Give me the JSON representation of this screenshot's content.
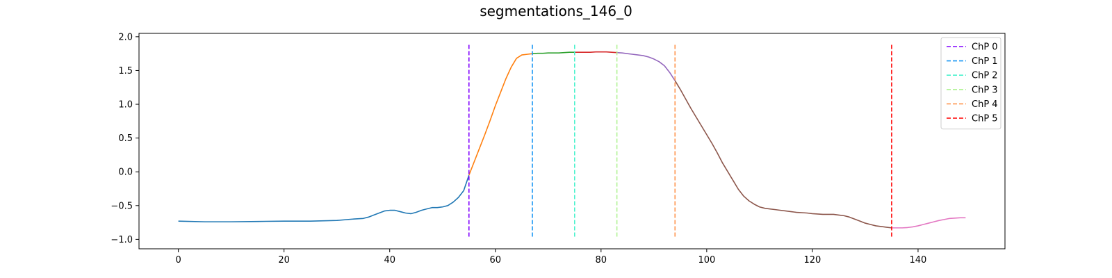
{
  "chart_data": {
    "type": "line",
    "title": "segmentations_146_0",
    "xlabel": "",
    "ylabel": "",
    "xlim": [
      -7.45,
      156.45
    ],
    "ylim": [
      -1.14,
      2.05
    ],
    "xticks": [
      0,
      20,
      40,
      60,
      80,
      100,
      120,
      140
    ],
    "yticks": [
      -1.0,
      -0.5,
      0.0,
      0.5,
      1.0,
      1.5,
      2.0
    ],
    "ytick_labels": [
      "−1.0",
      "−0.5",
      "0.0",
      "0.5",
      "1.0",
      "1.5",
      "2.0"
    ],
    "grid": false,
    "legend_position": "top-right",
    "x": [
      0,
      5,
      10,
      15,
      20,
      25,
      30,
      33,
      35,
      36,
      37,
      38,
      39,
      40,
      41,
      42,
      43,
      44,
      45,
      46,
      47,
      48,
      49,
      50,
      51,
      52,
      53,
      54,
      55,
      56,
      57,
      58,
      59,
      60,
      61,
      62,
      63,
      64,
      65,
      66,
      67,
      68,
      69,
      70,
      71,
      72,
      73,
      74,
      75,
      76,
      77,
      78,
      79,
      80,
      81,
      82,
      83,
      84,
      85,
      86,
      87,
      88,
      89,
      90,
      91,
      92,
      93,
      94,
      95,
      96,
      97,
      98,
      99,
      100,
      101,
      102,
      103,
      104,
      105,
      106,
      107,
      108,
      109,
      110,
      111,
      112,
      113,
      114,
      115,
      116,
      117,
      118,
      119,
      120,
      121,
      122,
      123,
      124,
      125,
      126,
      127,
      128,
      129,
      130,
      131,
      132,
      133,
      134,
      135,
      136,
      137,
      138,
      139,
      140,
      141,
      142,
      143,
      144,
      145,
      146,
      147,
      148,
      149
    ],
    "y": [
      -0.73,
      -0.74,
      -0.74,
      -0.735,
      -0.73,
      -0.73,
      -0.72,
      -0.7,
      -0.69,
      -0.67,
      -0.64,
      -0.61,
      -0.58,
      -0.57,
      -0.57,
      -0.59,
      -0.61,
      -0.62,
      -0.6,
      -0.57,
      -0.55,
      -0.53,
      -0.53,
      -0.52,
      -0.5,
      -0.45,
      -0.38,
      -0.28,
      -0.05,
      0.15,
      0.35,
      0.55,
      0.76,
      0.98,
      1.18,
      1.38,
      1.55,
      1.68,
      1.73,
      1.74,
      1.75,
      1.755,
      1.755,
      1.76,
      1.76,
      1.76,
      1.765,
      1.77,
      1.77,
      1.77,
      1.77,
      1.77,
      1.775,
      1.775,
      1.775,
      1.77,
      1.765,
      1.76,
      1.75,
      1.74,
      1.73,
      1.72,
      1.7,
      1.67,
      1.63,
      1.57,
      1.47,
      1.35,
      1.22,
      1.08,
      0.94,
      0.81,
      0.68,
      0.55,
      0.42,
      0.28,
      0.13,
      0.0,
      -0.13,
      -0.26,
      -0.36,
      -0.43,
      -0.48,
      -0.52,
      -0.54,
      -0.55,
      -0.56,
      -0.57,
      -0.58,
      -0.59,
      -0.6,
      -0.605,
      -0.61,
      -0.62,
      -0.625,
      -0.63,
      -0.63,
      -0.63,
      -0.64,
      -0.65,
      -0.67,
      -0.7,
      -0.73,
      -0.76,
      -0.78,
      -0.8,
      -0.81,
      -0.82,
      -0.83,
      -0.83,
      -0.83,
      -0.825,
      -0.815,
      -0.8,
      -0.78,
      -0.76,
      -0.74,
      -0.72,
      -0.705,
      -0.69,
      -0.685,
      -0.68,
      -0.68
    ],
    "segment_bounds": [
      0,
      55,
      67,
      75,
      83,
      94,
      135,
      149
    ],
    "segment_colors": [
      "#1f77b4",
      "#ff7f0e",
      "#2ca02c",
      "#d62728",
      "#9467bd",
      "#8c564b",
      "#e377c2"
    ],
    "changepoints": [
      {
        "name": "ChP 0",
        "x": 55,
        "color": "#8000ff"
      },
      {
        "name": "ChP 1",
        "x": 67,
        "color": "#1996f3"
      },
      {
        "name": "ChP 2",
        "x": 75,
        "color": "#4cf2ce"
      },
      {
        "name": "ChP 3",
        "x": 83,
        "color": "#b2f396"
      },
      {
        "name": "ChP 4",
        "x": 94,
        "color": "#ff964f"
      },
      {
        "name": "ChP 5",
        "x": 135,
        "color": "#ff0000"
      }
    ],
    "changepoint_y_range": [
      -0.96,
      1.91
    ]
  }
}
